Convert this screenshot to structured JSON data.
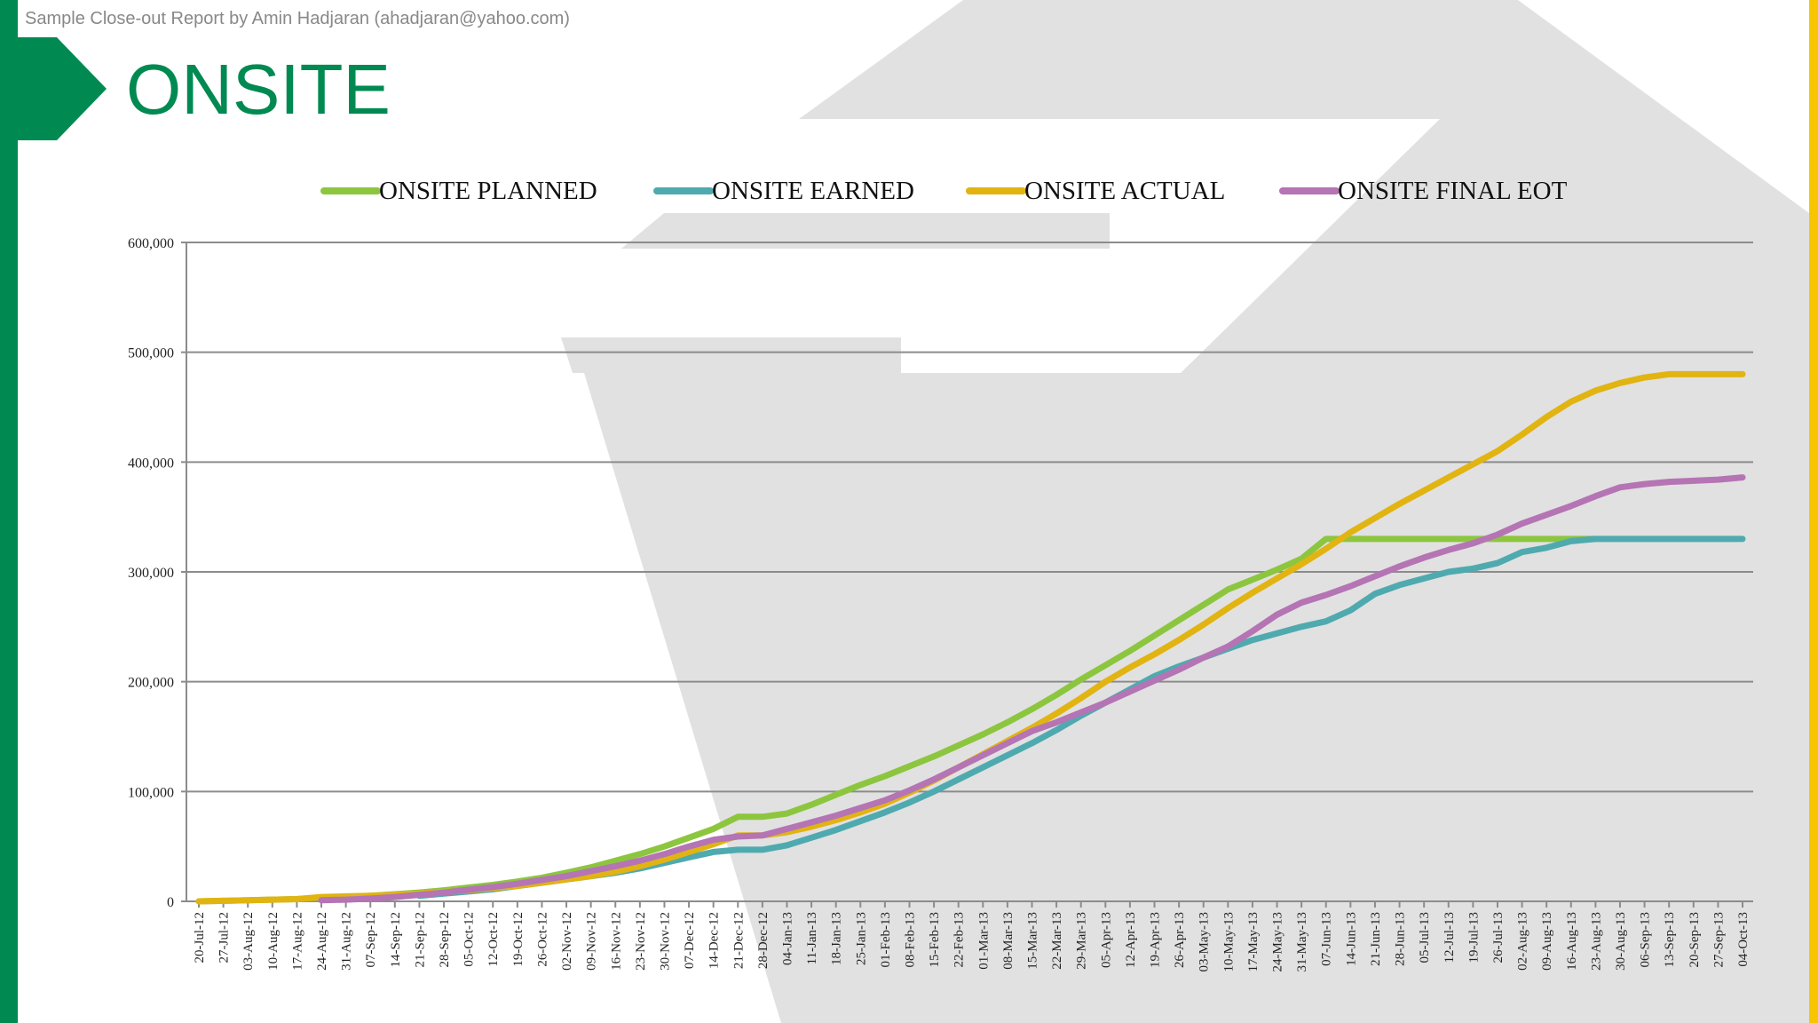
{
  "header": {
    "credit": "Sample Close-out Report by Amin Hadjaran (ahadjaran@yahoo.com)",
    "title": "ONSITE"
  },
  "colors": {
    "brand_green": "#008a52",
    "accent_yellow": "#f7c600",
    "watermark_gray": "#e1e1e1"
  },
  "chart_data": {
    "type": "line",
    "title": "",
    "xlabel": "",
    "ylabel": "",
    "ylim": [
      0,
      600000
    ],
    "yticks": [
      0,
      100000,
      200000,
      300000,
      400000,
      500000,
      600000
    ],
    "ytick_labels": [
      "0",
      "100,000",
      "200,000",
      "300,000",
      "400,000",
      "500,000",
      "600,000"
    ],
    "grid": true,
    "legend_position": "top",
    "categories": [
      "20-Jul-12",
      "27-Jul-12",
      "03-Aug-12",
      "10-Aug-12",
      "17-Aug-12",
      "24-Aug-12",
      "31-Aug-12",
      "07-Sep-12",
      "14-Sep-12",
      "21-Sep-12",
      "28-Sep-12",
      "05-Oct-12",
      "12-Oct-12",
      "19-Oct-12",
      "26-Oct-12",
      "02-Nov-12",
      "09-Nov-12",
      "16-Nov-12",
      "23-Nov-12",
      "30-Nov-12",
      "07-Dec-12",
      "14-Dec-12",
      "21-Dec-12",
      "28-Dec-12",
      "04-Jan-13",
      "11-Jan-13",
      "18-Jan-13",
      "25-Jan-13",
      "01-Feb-13",
      "08-Feb-13",
      "15-Feb-13",
      "22-Feb-13",
      "01-Mar-13",
      "08-Mar-13",
      "15-Mar-13",
      "22-Mar-13",
      "29-Mar-13",
      "05-Apr-13",
      "12-Apr-13",
      "19-Apr-13",
      "26-Apr-13",
      "03-May-13",
      "10-May-13",
      "17-May-13",
      "24-May-13",
      "31-May-13",
      "07-Jun-13",
      "14-Jun-13",
      "21-Jun-13",
      "28-Jun-13",
      "05-Jul-13",
      "12-Jul-13",
      "19-Jul-13",
      "26-Jul-13",
      "02-Aug-13",
      "09-Aug-13",
      "16-Aug-13",
      "23-Aug-13",
      "30-Aug-13",
      "06-Sep-13",
      "13-Sep-13",
      "20-Sep-13",
      "27-Sep-13",
      "04-Oct-13"
    ],
    "series": [
      {
        "name": "ONSITE PLANNED",
        "color": "#8cc63f",
        "values": [
          0,
          500,
          1000,
          1500,
          2000,
          3500,
          4000,
          5000,
          6500,
          8000,
          10000,
          12500,
          15000,
          18000,
          21500,
          26000,
          31000,
          37000,
          43000,
          50000,
          58000,
          66000,
          77000,
          77000,
          80000,
          88000,
          97000,
          106000,
          114000,
          123000,
          132000,
          142000,
          152000,
          163000,
          175000,
          188000,
          202000,
          215000,
          228000,
          242000,
          256000,
          270000,
          284000,
          293000,
          302000,
          312000,
          330000,
          330000,
          330000,
          330000,
          330000,
          330000,
          330000,
          330000,
          330000,
          330000,
          330000,
          330000,
          null,
          null,
          null,
          null,
          null,
          null
        ]
      },
      {
        "name": "ONSITE EARNED",
        "color": "#4faaaf",
        "values": [
          null,
          null,
          null,
          null,
          null,
          null,
          null,
          null,
          null,
          5000,
          7000,
          9000,
          11000,
          14000,
          17000,
          20000,
          23000,
          26000,
          30000,
          35000,
          40000,
          45000,
          47000,
          47000,
          51000,
          58000,
          65000,
          73000,
          81000,
          90000,
          100000,
          111000,
          122000,
          133000,
          144000,
          156000,
          169000,
          181000,
          193000,
          205000,
          214000,
          222000,
          230000,
          238000,
          244000,
          250000,
          255000,
          265000,
          280000,
          288000,
          294000,
          300000,
          303000,
          308000,
          318000,
          322000,
          328000,
          330000,
          330000,
          330000,
          330000,
          330000,
          330000,
          330000
        ]
      },
      {
        "name": "ONSITE ACTUAL",
        "color": "#e1b412",
        "values": [
          0,
          500,
          1000,
          1500,
          2000,
          4000,
          4500,
          5000,
          6000,
          7000,
          8500,
          10000,
          12000,
          14000,
          17000,
          20000,
          23000,
          27000,
          32000,
          38000,
          45000,
          52000,
          60000,
          60000,
          63000,
          68000,
          74000,
          81000,
          89000,
          99000,
          110000,
          122000,
          134000,
          146000,
          158000,
          171000,
          185000,
          200000,
          213000,
          225000,
          238000,
          252000,
          267000,
          281000,
          294000,
          307000,
          321000,
          336000,
          349000,
          362000,
          374000,
          386000,
          398000,
          410000,
          425000,
          441000,
          455000,
          465000,
          472000,
          477000,
          480000,
          480000,
          480000,
          480000
        ]
      },
      {
        "name": "ONSITE FINAL EOT",
        "color": "#b574b4",
        "values": [
          null,
          null,
          null,
          null,
          null,
          1000,
          1500,
          2500,
          4000,
          6000,
          8000,
          10500,
          13000,
          16000,
          19500,
          23000,
          27500,
          32000,
          37000,
          43000,
          50000,
          56000,
          59000,
          60000,
          66000,
          72000,
          78000,
          85000,
          92000,
          101000,
          111000,
          122000,
          133000,
          144000,
          155000,
          163000,
          172000,
          181000,
          191000,
          201000,
          211000,
          222000,
          232000,
          246000,
          261000,
          272000,
          279000,
          287000,
          296000,
          305000,
          313000,
          320000,
          326000,
          334000,
          344000,
          352000,
          360000,
          369000,
          377000,
          380000,
          382000,
          383000,
          384000,
          386000
        ]
      }
    ]
  }
}
